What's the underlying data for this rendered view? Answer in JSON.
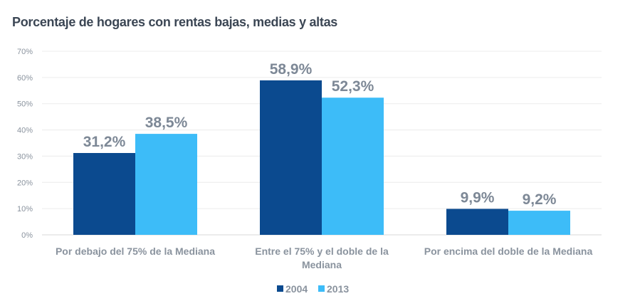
{
  "chart_data": {
    "type": "bar",
    "title": "Porcentaje de hogares con rentas bajas, medias y altas",
    "categories": [
      [
        "Por debajo del 75% de la Mediana"
      ],
      [
        "Entre el 75% y el doble de la",
        "Mediana"
      ],
      [
        "Por encima del doble de la Mediana"
      ]
    ],
    "series": [
      {
        "name": "2004",
        "color": "#0b4a8f",
        "values": [
          31.2,
          58.9,
          9.9
        ],
        "labels": [
          "31,2%",
          "58,9%",
          "9,9%"
        ]
      },
      {
        "name": "2013",
        "color": "#3dbcf8",
        "values": [
          38.5,
          52.3,
          9.2
        ],
        "labels": [
          "38,5%",
          "52,3%",
          "9,2%"
        ]
      }
    ],
    "ylim": [
      0,
      70
    ],
    "yticks": [
      "0%",
      "10%",
      "20%",
      "30%",
      "40%",
      "50%",
      "60%",
      "70%"
    ],
    "grid": true,
    "legend": "bottom",
    "xlabel": "",
    "ylabel": ""
  }
}
